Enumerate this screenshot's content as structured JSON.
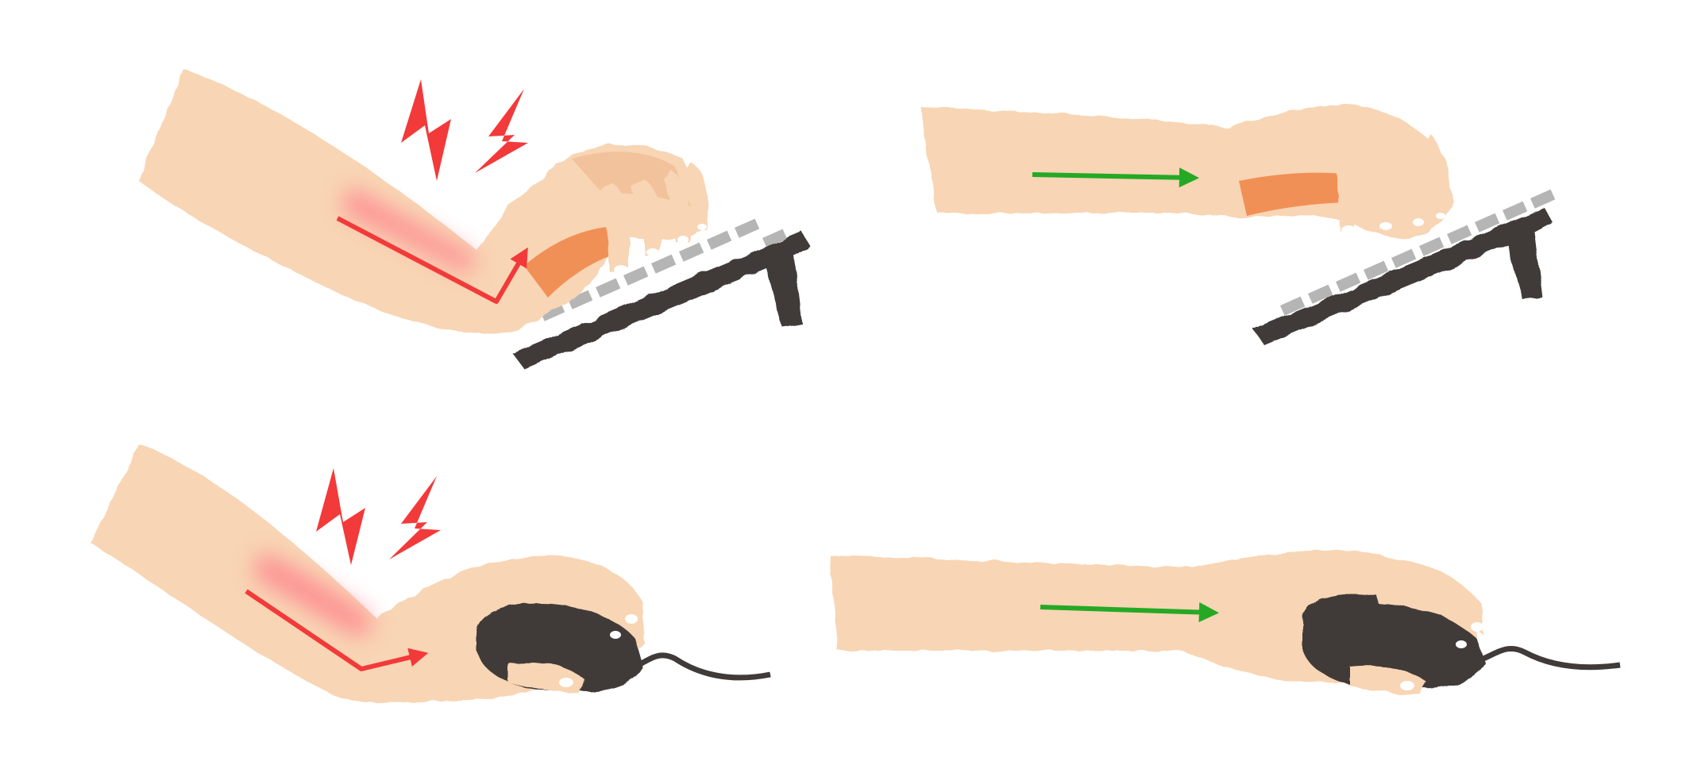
{
  "colors": {
    "background": "#ffffff",
    "skin": "#f8d5b4",
    "skin_shadow": "#efb58c",
    "skin_inner": "#f19056",
    "device": "#403b38",
    "keycap": "#b5b5b5",
    "strain_arrow": "#f23a3a",
    "strain_glow": "#ff7e8a",
    "good_arrow": "#25a925",
    "nail": "#ffffff"
  },
  "panels": [
    {
      "id": "keyboard-bent",
      "device": "keyboard",
      "wrist": "bent",
      "pain": true
    },
    {
      "id": "keyboard-straight",
      "device": "keyboard",
      "wrist": "straight",
      "pain": false
    },
    {
      "id": "mouse-bent",
      "device": "mouse",
      "wrist": "bent",
      "pain": true
    },
    {
      "id": "mouse-straight",
      "device": "mouse",
      "wrist": "straight",
      "pain": false
    }
  ],
  "icons": {
    "pain": "lightning-bolt-icon",
    "strain": "bent-arrow-icon",
    "good": "straight-arrow-icon"
  }
}
